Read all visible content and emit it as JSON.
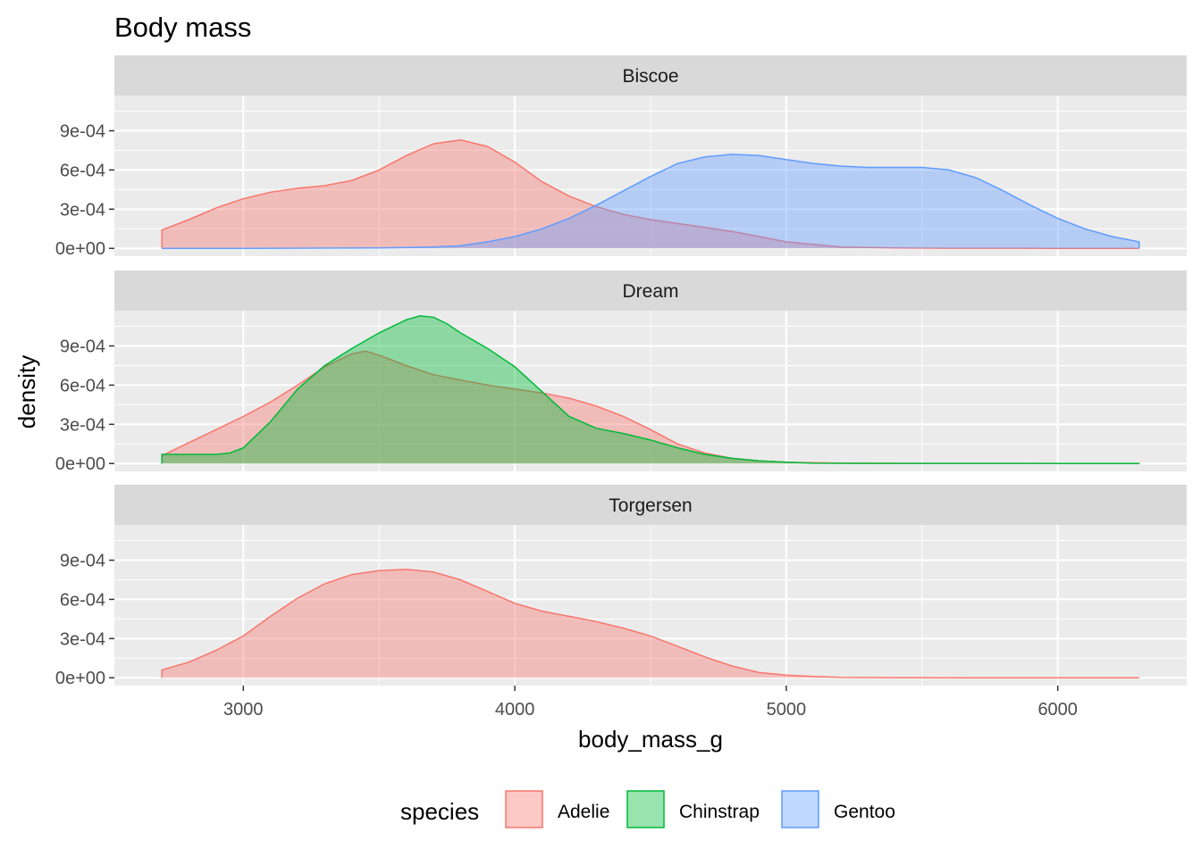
{
  "chart_data": {
    "type": "area",
    "subtype": "density",
    "title": "Body mass",
    "xlabel": "body_mass_g",
    "ylabel": "density",
    "xlim": [
      2525,
      6475
    ],
    "ylim": [
      -6e-05,
      0.00117
    ],
    "x_ticks": [
      3000,
      4000,
      5000,
      6000
    ],
    "x_tick_labels": [
      "3000",
      "4000",
      "5000",
      "6000"
    ],
    "y_ticks": [
      0,
      0.0003,
      0.0006,
      0.0009
    ],
    "y_tick_labels": [
      "0e+00",
      "3e-04",
      "6e-04",
      "9e-04"
    ],
    "grid": true,
    "legend_position": "bottom",
    "legend_title": "species",
    "species": [
      {
        "name": "Adelie",
        "color": "#F8766D",
        "fill": "rgba(248,118,109,0.4)"
      },
      {
        "name": "Chinstrap",
        "color": "#00BA38",
        "fill": "rgba(0,186,56,0.4)"
      },
      {
        "name": "Gentoo",
        "color": "#619CFF",
        "fill": "rgba(97,156,255,0.4)"
      }
    ],
    "facets": [
      {
        "label": "Biscoe",
        "series": [
          {
            "name": "Adelie",
            "x": [
              2700,
              2800,
              2900,
              3000,
              3100,
              3200,
              3300,
              3400,
              3500,
              3600,
              3700,
              3800,
              3900,
              4000,
              4100,
              4200,
              4300,
              4400,
              4500,
              4600,
              4700,
              4800,
              4900,
              5000,
              5100,
              5200,
              5400,
              5600,
              5800,
              6000,
              6300
            ],
            "y": [
              0.00014,
              0.00022,
              0.00031,
              0.00038,
              0.00043,
              0.00046,
              0.00048,
              0.00052,
              0.0006,
              0.00071,
              0.0008,
              0.00083,
              0.00078,
              0.00066,
              0.00051,
              0.0004,
              0.00032,
              0.00026,
              0.00022,
              0.00019,
              0.00016,
              0.00013,
              9e-05,
              5e-05,
              3e-05,
              1e-05,
              3e-06,
              1e-06,
              5e-07,
              2e-07,
              1e-07
            ]
          },
          {
            "name": "Gentoo",
            "x": [
              2700,
              3000,
              3500,
              3700,
              3800,
              3900,
              4000,
              4100,
              4200,
              4300,
              4400,
              4500,
              4600,
              4700,
              4800,
              4900,
              5000,
              5100,
              5200,
              5300,
              5400,
              5500,
              5600,
              5700,
              5800,
              5900,
              6000,
              6100,
              6200,
              6300
            ],
            "y": [
              0,
              0,
              3e-06,
              1e-05,
              2e-05,
              5e-05,
              9e-05,
              0.00015,
              0.00023,
              0.00033,
              0.00044,
              0.00055,
              0.00065,
              0.0007,
              0.00072,
              0.00071,
              0.00068,
              0.00065,
              0.00063,
              0.00062,
              0.00062,
              0.00062,
              0.0006,
              0.00054,
              0.00044,
              0.00033,
              0.00023,
              0.00015,
              9e-05,
              5e-05
            ]
          }
        ]
      },
      {
        "label": "Dream",
        "series": [
          {
            "name": "Adelie",
            "x": [
              2700,
              2800,
              2900,
              3000,
              3100,
              3200,
              3300,
              3400,
              3450,
              3500,
              3600,
              3700,
              3800,
              3900,
              4000,
              4100,
              4200,
              4300,
              4400,
              4500,
              4600,
              4700,
              4800,
              4900,
              5000,
              5200,
              5500,
              6000,
              6300
            ],
            "y": [
              6e-05,
              0.00016,
              0.00026,
              0.00036,
              0.00047,
              0.0006,
              0.00074,
              0.00084,
              0.00086,
              0.00083,
              0.00075,
              0.00068,
              0.00064,
              0.0006,
              0.00057,
              0.00054,
              0.0005,
              0.00044,
              0.00036,
              0.00026,
              0.00015,
              8e-05,
              4e-05,
              2e-05,
              1e-05,
              3e-06,
              1e-06,
              0,
              0
            ]
          },
          {
            "name": "Chinstrap",
            "x": [
              2700,
              2800,
              2900,
              2950,
              3000,
              3100,
              3200,
              3300,
              3400,
              3500,
              3600,
              3650,
              3700,
              3750,
              3800,
              3900,
              4000,
              4100,
              4200,
              4300,
              4400,
              4500,
              4600,
              4700,
              4800,
              4900,
              5000,
              5100,
              5300,
              5600,
              6000,
              6300
            ],
            "y": [
              7e-05,
              7e-05,
              7e-05,
              8e-05,
              0.00012,
              0.00032,
              0.00057,
              0.00075,
              0.00088,
              0.001,
              0.0011,
              0.00113,
              0.00112,
              0.00107,
              0.001,
              0.00088,
              0.00074,
              0.00055,
              0.00036,
              0.00027,
              0.00023,
              0.00018,
              0.00012,
              7e-05,
              4e-05,
              2e-05,
              1e-05,
              2e-06,
              1e-06,
              1e-06,
              1e-06,
              1e-06
            ]
          }
        ]
      },
      {
        "label": "Torgersen",
        "series": [
          {
            "name": "Adelie",
            "x": [
              2700,
              2800,
              2900,
              3000,
              3100,
              3200,
              3300,
              3400,
              3500,
              3600,
              3700,
              3800,
              3900,
              4000,
              4100,
              4200,
              4300,
              4400,
              4500,
              4600,
              4700,
              4800,
              4900,
              5000,
              5100,
              5200,
              5400,
              5700,
              6000,
              6300
            ],
            "y": [
              6e-05,
              0.00012,
              0.00021,
              0.00032,
              0.00047,
              0.00061,
              0.00072,
              0.00079,
              0.00082,
              0.00083,
              0.00081,
              0.00075,
              0.00066,
              0.00057,
              0.00051,
              0.00047,
              0.00043,
              0.00038,
              0.00032,
              0.00024,
              0.00016,
              9e-05,
              4e-05,
              2e-05,
              1e-05,
              3e-06,
              1e-06,
              0,
              0,
              0
            ]
          }
        ]
      }
    ]
  }
}
